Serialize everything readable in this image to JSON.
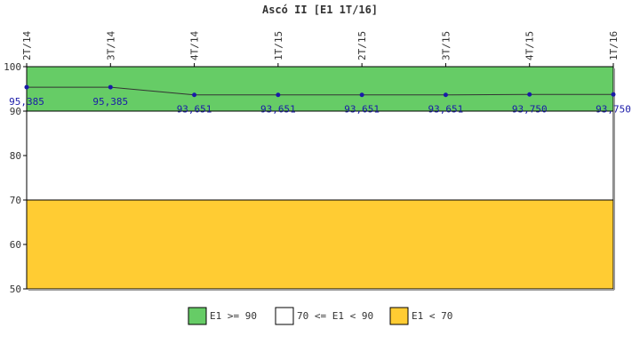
{
  "chart_data": {
    "type": "line",
    "title": "Ascó II [E1 1T/16]",
    "xlabel": "",
    "ylabel": "",
    "categories": [
      "2T/14",
      "3T/14",
      "4T/14",
      "1T/15",
      "2T/15",
      "3T/15",
      "4T/15",
      "1T/16"
    ],
    "series": [
      {
        "values": [
          95.385,
          95.385,
          93.651,
          93.651,
          93.651,
          93.651,
          93.75,
          93.75
        ],
        "labels": [
          "95,385",
          "95,385",
          "93,651",
          "93,651",
          "93,651",
          "93,651",
          "93,750",
          "93,750"
        ],
        "color": "#1a1aa8"
      }
    ],
    "ylim": [
      50,
      100
    ],
    "yticks": [
      50,
      60,
      70,
      80,
      90,
      100
    ],
    "bands": [
      {
        "from": 90,
        "to": 100,
        "color": "#66cc66",
        "label": "E1 >= 90"
      },
      {
        "from": 70,
        "to": 90,
        "color": "#ffffff",
        "label": "70 <= E1 < 90"
      },
      {
        "from": 50,
        "to": 70,
        "color": "#ffcc33",
        "label": "E1 < 70"
      }
    ],
    "grid": false,
    "legend_position": "bottom"
  }
}
